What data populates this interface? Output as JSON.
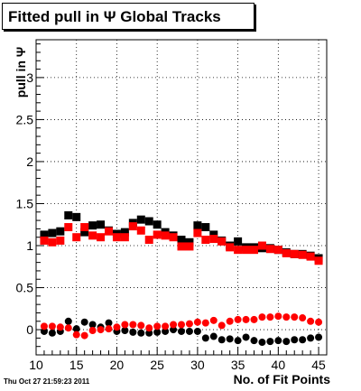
{
  "canvas": {
    "background": "#ffffff"
  },
  "chart_data": {
    "type": "scatter",
    "title": "Fitted pull in  Ψ   Global Tracks",
    "xlabel": "No. of Fit Points",
    "ylabel": "pull in Ψ",
    "xlim": [
      10,
      46
    ],
    "ylim": [
      -0.3,
      3.45
    ],
    "xticks": [
      "10",
      "15",
      "20",
      "25",
      "30",
      "35",
      "40",
      "45"
    ],
    "yticks": [
      "0",
      "0.5",
      "1",
      "1.5",
      "2",
      "2.5",
      "3"
    ],
    "grid": true,
    "series": [
      {
        "marker": "square",
        "color": "#000000",
        "x": [
          11,
          12,
          13,
          14,
          15,
          16,
          17,
          18,
          19,
          20,
          21,
          22,
          23,
          24,
          25,
          26,
          27,
          28,
          29,
          30,
          31,
          32,
          33,
          34,
          35,
          36,
          37,
          38,
          39,
          40,
          41,
          42,
          43,
          44,
          45
        ],
        "values": [
          1.13,
          1.15,
          1.17,
          1.36,
          1.34,
          1.16,
          1.24,
          1.25,
          1.18,
          1.14,
          1.16,
          1.27,
          1.31,
          1.29,
          1.25,
          1.16,
          1.12,
          1.07,
          1.04,
          1.24,
          1.22,
          1.13,
          1.06,
          1.0,
          1.05,
          0.98,
          0.98,
          0.97,
          0.97,
          0.95,
          0.92,
          0.9,
          0.9,
          0.88,
          0.85
        ]
      },
      {
        "marker": "square",
        "color": "#ff0000",
        "x": [
          11,
          12,
          13,
          14,
          15,
          16,
          17,
          18,
          19,
          20,
          21,
          22,
          23,
          24,
          25,
          26,
          27,
          28,
          29,
          30,
          31,
          32,
          33,
          34,
          35,
          36,
          37,
          38,
          39,
          40,
          41,
          42,
          43,
          44,
          45
        ],
        "values": [
          1.06,
          1.04,
          1.06,
          1.22,
          1.1,
          1.22,
          1.12,
          1.1,
          1.17,
          1.1,
          1.1,
          1.23,
          1.18,
          1.07,
          1.13,
          1.12,
          1.1,
          0.99,
          0.99,
          1.15,
          1.07,
          1.08,
          1.05,
          0.98,
          0.95,
          0.95,
          0.95,
          1.0,
          0.96,
          0.95,
          0.91,
          0.9,
          0.89,
          0.87,
          0.82
        ]
      },
      {
        "marker": "circle",
        "color": "#000000",
        "x": [
          11,
          12,
          13,
          14,
          15,
          16,
          17,
          18,
          19,
          20,
          21,
          22,
          23,
          24,
          25,
          26,
          27,
          28,
          29,
          30,
          31,
          32,
          33,
          34,
          35,
          36,
          37,
          38,
          39,
          40,
          41,
          42,
          43,
          44,
          45
        ],
        "values": [
          -0.02,
          -0.04,
          -0.02,
          0.1,
          0.01,
          0.09,
          0.06,
          0.03,
          0.08,
          -0.02,
          -0.01,
          -0.03,
          -0.04,
          -0.04,
          -0.03,
          -0.02,
          0.0,
          -0.02,
          -0.02,
          -0.02,
          -0.1,
          -0.08,
          -0.12,
          -0.11,
          -0.13,
          -0.09,
          -0.13,
          -0.15,
          -0.14,
          -0.13,
          -0.14,
          -0.12,
          -0.12,
          -0.1,
          -0.09
        ]
      },
      {
        "marker": "circle",
        "color": "#ff0000",
        "x": [
          11,
          12,
          13,
          14,
          15,
          16,
          17,
          18,
          19,
          20,
          21,
          22,
          23,
          24,
          25,
          26,
          27,
          28,
          29,
          30,
          31,
          32,
          33,
          34,
          35,
          36,
          37,
          38,
          39,
          40,
          41,
          42,
          43,
          44,
          45
        ],
        "values": [
          0.04,
          0.04,
          0.03,
          0.02,
          -0.06,
          -0.07,
          -0.01,
          0.0,
          0.01,
          0.03,
          0.06,
          0.06,
          0.05,
          0.02,
          0.04,
          0.04,
          0.06,
          0.06,
          0.07,
          0.09,
          0.08,
          0.11,
          0.05,
          0.1,
          0.12,
          0.12,
          0.12,
          0.15,
          0.15,
          0.16,
          0.15,
          0.15,
          0.14,
          0.1,
          0.09
        ]
      }
    ]
  },
  "timestamp": "Thu Oct 27 21:59:23 2011"
}
